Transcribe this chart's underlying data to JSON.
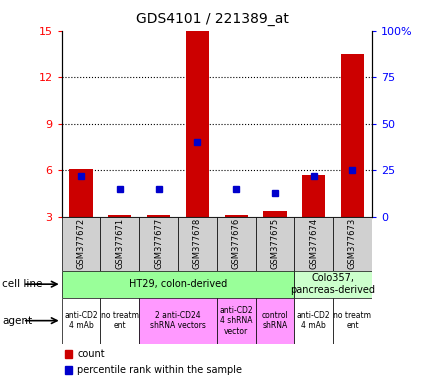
{
  "title": "GDS4101 / 221389_at",
  "samples": [
    "GSM377672",
    "GSM377671",
    "GSM377677",
    "GSM377678",
    "GSM377676",
    "GSM377675",
    "GSM377674",
    "GSM377673"
  ],
  "counts": [
    6.1,
    3.1,
    3.1,
    15.0,
    3.1,
    3.4,
    5.7,
    13.5
  ],
  "percentile_ranks": [
    22,
    15,
    15,
    40,
    15,
    13,
    22,
    25
  ],
  "ylim_left": [
    3,
    15
  ],
  "yticks_left": [
    3,
    6,
    9,
    12,
    15
  ],
  "ylim_right": [
    0,
    100
  ],
  "yticks_right": [
    0,
    25,
    50,
    75,
    100
  ],
  "bar_color": "#cc0000",
  "dot_color": "#0000cc",
  "cell_lines": [
    {
      "label": "HT29, colon-derived",
      "span": [
        0,
        6
      ],
      "color": "#99ff99"
    },
    {
      "label": "Colo357,\npancreas-derived",
      "span": [
        6,
        8
      ],
      "color": "#ccffcc"
    }
  ],
  "agents": [
    {
      "label": "anti-CD2\n4 mAb",
      "span": [
        0,
        1
      ],
      "color": "#ffffff"
    },
    {
      "label": "no treatm\nent",
      "span": [
        1,
        2
      ],
      "color": "#ffffff"
    },
    {
      "label": "2 anti-CD24\nshRNA vectors",
      "span": [
        2,
        4
      ],
      "color": "#ff99ff"
    },
    {
      "label": "anti-CD2\n4 shRNA\nvector",
      "span": [
        4,
        5
      ],
      "color": "#ff99ff"
    },
    {
      "label": "control\nshRNA",
      "span": [
        5,
        6
      ],
      "color": "#ff99ff"
    },
    {
      "label": "anti-CD2\n4 mAb",
      "span": [
        6,
        7
      ],
      "color": "#ffffff"
    },
    {
      "label": "no treatm\nent",
      "span": [
        7,
        8
      ],
      "color": "#ffffff"
    }
  ],
  "legend_items": [
    {
      "label": "count",
      "color": "#cc0000"
    },
    {
      "label": "percentile rank within the sample",
      "color": "#0000cc"
    }
  ],
  "grid_yticks": [
    6,
    9,
    12
  ],
  "bar_grid_color": "#d8d8d8",
  "sample_box_color": "#d0d0d0"
}
